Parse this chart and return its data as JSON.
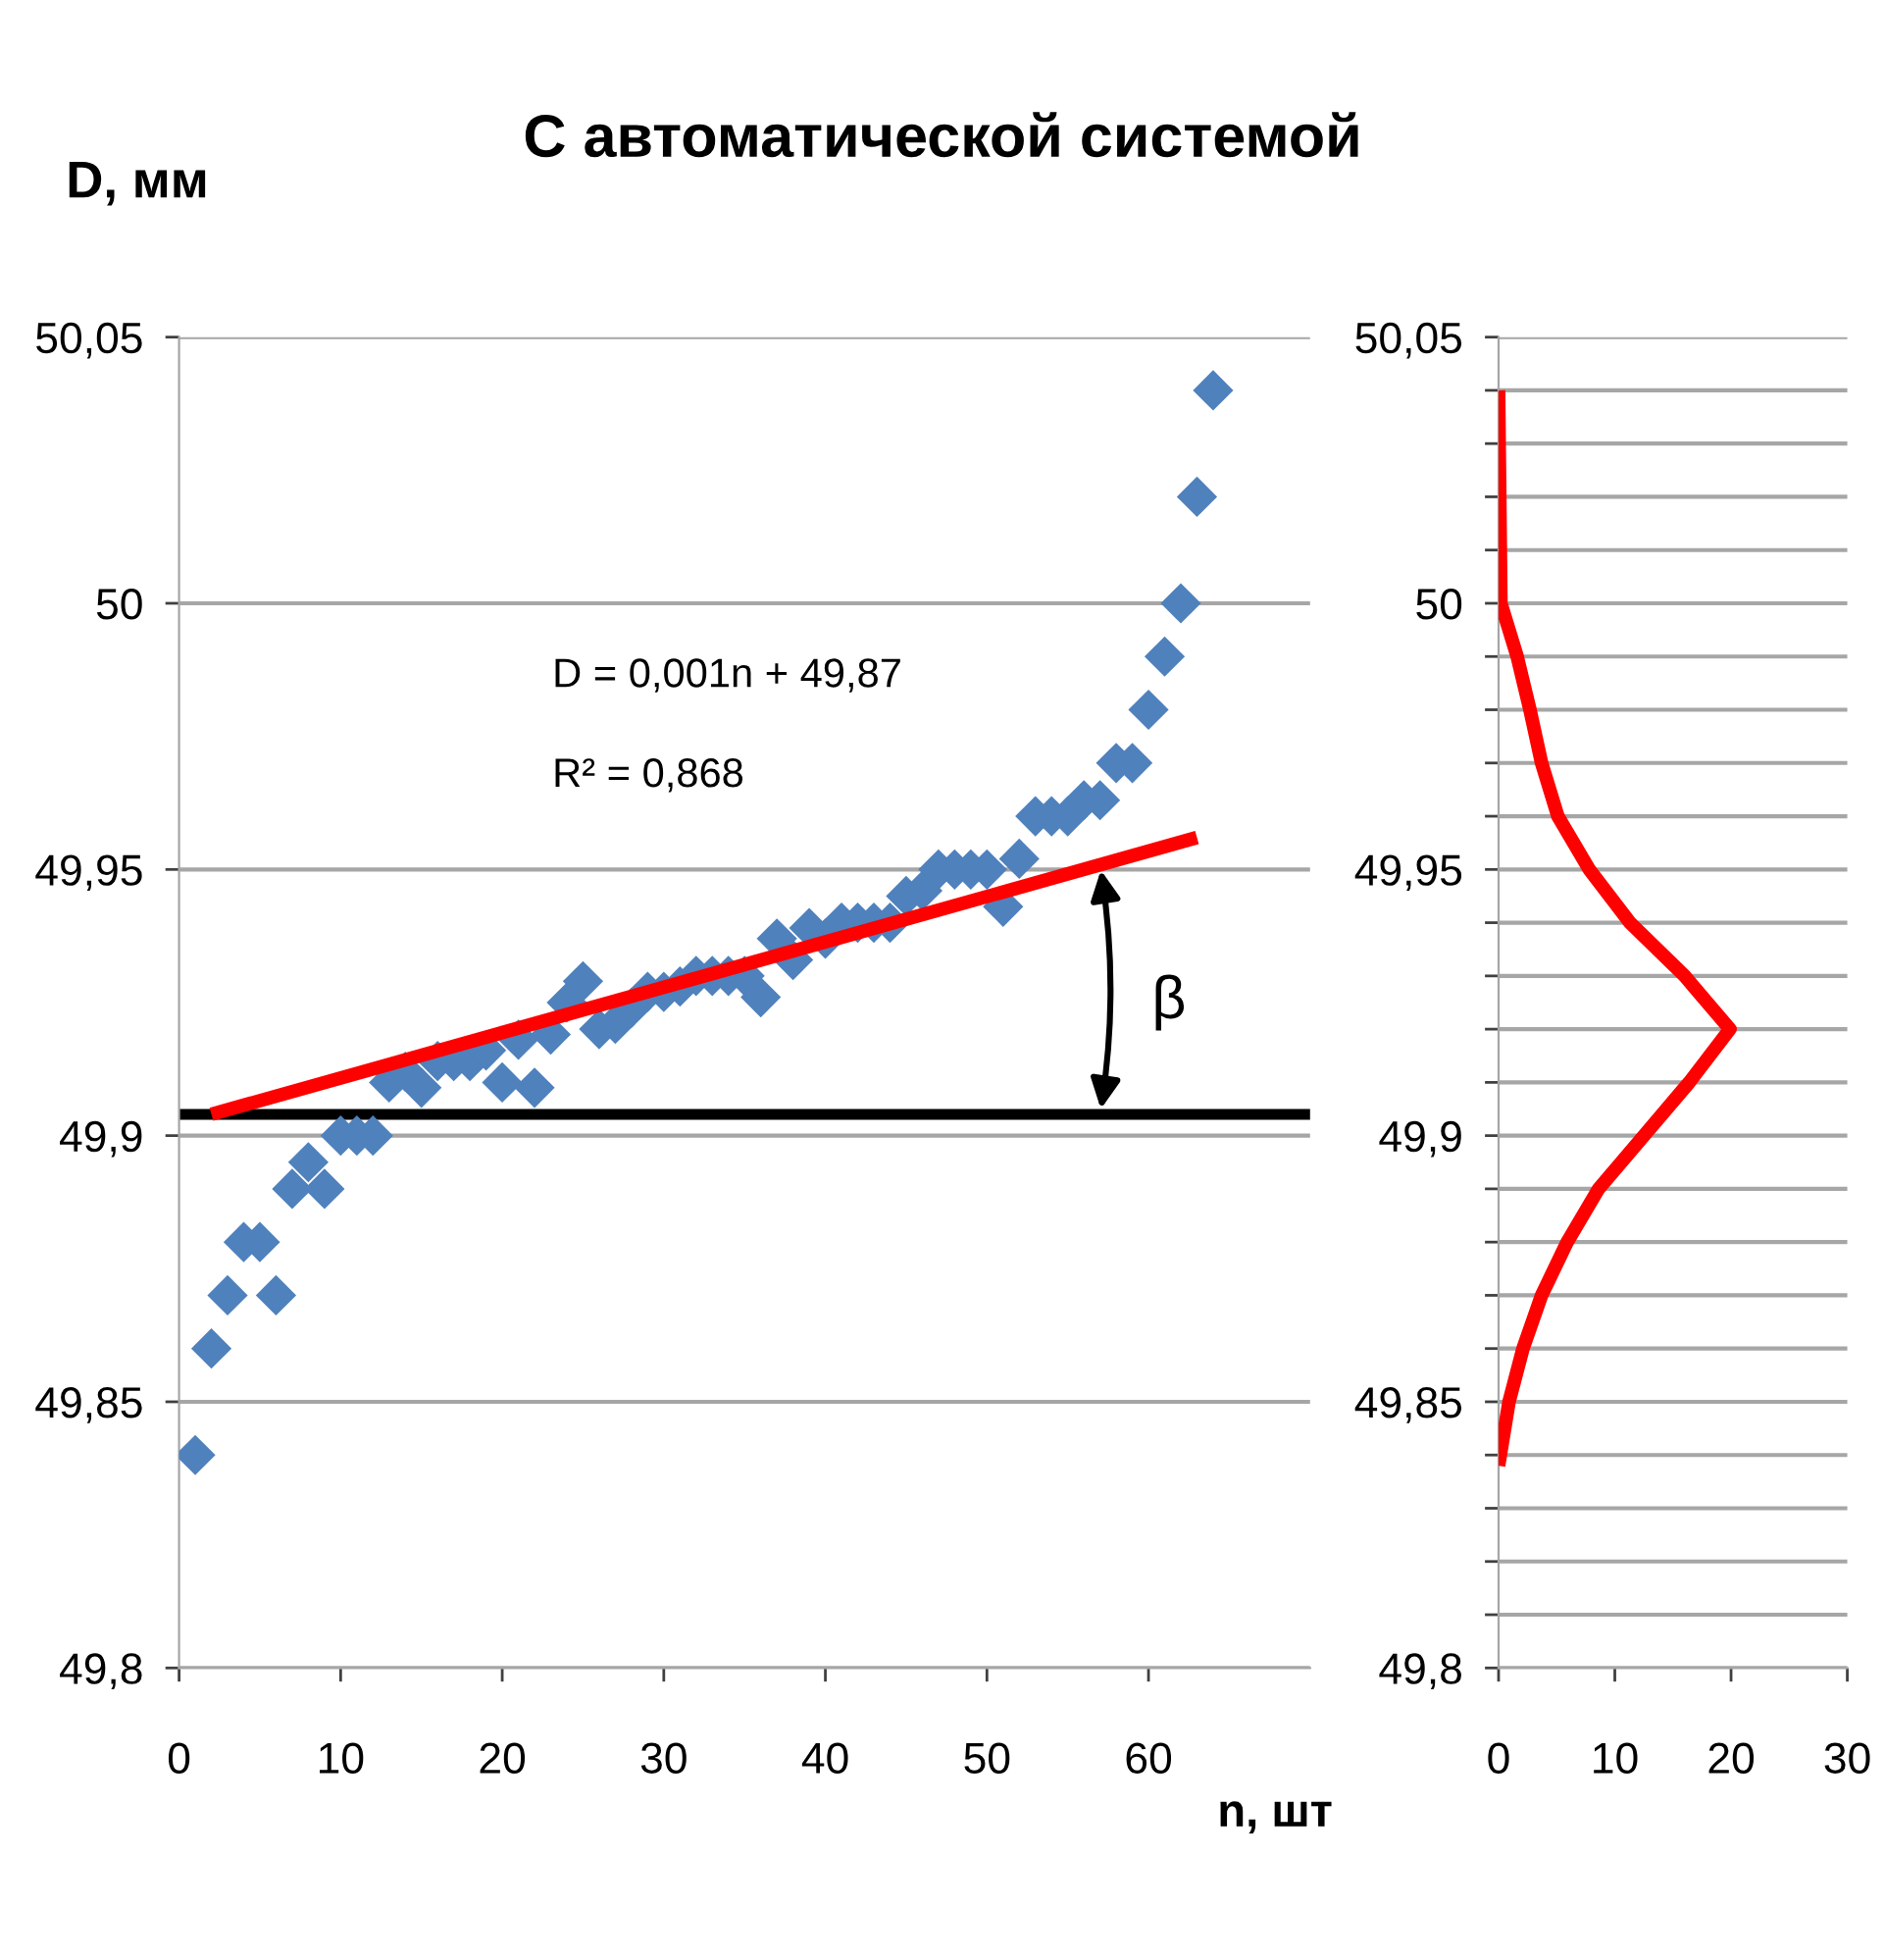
{
  "chart_data": [
    {
      "type": "scatter",
      "title": "С автоматической системой",
      "ylabel": "D, мм",
      "xlabel": "n, шт",
      "xlim": [
        0,
        70
      ],
      "xticks": [
        0,
        10,
        20,
        30,
        40,
        50,
        60
      ],
      "ylim": [
        49.8,
        50.05
      ],
      "yticks": [
        {
          "value": 49.8,
          "label": "49,8"
        },
        {
          "value": 49.85,
          "label": "49,85"
        },
        {
          "value": 49.9,
          "label": "49,9"
        },
        {
          "value": 49.95,
          "label": "49,95"
        },
        {
          "value": 50,
          "label": "50"
        },
        {
          "value": 50.05,
          "label": "50,05"
        }
      ],
      "grid": "y",
      "series": [
        {
          "marker": "diamond",
          "color": "#4f81bd",
          "x": [
            1,
            2,
            3,
            4,
            5,
            6,
            7,
            8,
            9,
            10,
            11,
            12,
            13,
            14,
            15,
            16,
            17,
            18,
            19,
            20,
            21,
            22,
            23,
            24,
            25,
            26,
            27,
            28,
            29,
            30,
            31,
            32,
            33,
            34,
            35,
            36,
            37,
            38,
            39,
            40,
            41,
            42,
            43,
            44,
            45,
            46,
            47,
            48,
            49,
            50,
            51,
            52,
            53,
            54,
            55,
            56,
            57,
            58,
            59,
            60,
            61,
            62,
            63,
            64
          ],
          "values": [
            49.84,
            49.86,
            49.87,
            49.88,
            49.88,
            49.87,
            49.89,
            49.895,
            49.89,
            49.9,
            49.9,
            49.9,
            49.91,
            49.912,
            49.909,
            49.914,
            49.914,
            49.914,
            49.916,
            49.91,
            49.918,
            49.909,
            49.919,
            49.925,
            49.929,
            49.92,
            49.921,
            49.924,
            49.927,
            49.927,
            49.928,
            49.93,
            49.93,
            49.93,
            49.93,
            49.926,
            49.937,
            49.933,
            49.939,
            49.937,
            49.94,
            49.94,
            49.94,
            49.94,
            49.945,
            49.946,
            49.95,
            49.95,
            49.95,
            49.95,
            49.943,
            49.952,
            49.96,
            49.96,
            49.96,
            49.963,
            49.963,
            49.97,
            49.97,
            49.98,
            49.99,
            50.0,
            50.02,
            50.04
          ]
        },
        {
          "type": "line",
          "color": "#ff0000",
          "x": [
            2,
            63
          ],
          "values": [
            49.904,
            49.956
          ]
        }
      ],
      "ref_lines": [
        {
          "axis": "y",
          "value": 49.904,
          "color": "#000000"
        }
      ],
      "annotations": [
        "D = 0,001n + 49,87",
        "R² = 0,868",
        "β"
      ]
    },
    {
      "type": "line",
      "xlim": [
        0,
        30
      ],
      "xticks": [
        0,
        10,
        20,
        30
      ],
      "ylim": [
        49.8,
        50.05
      ],
      "yticks": [
        {
          "value": 49.8,
          "label": "49,8"
        },
        {
          "value": 49.81,
          "label": null
        },
        {
          "value": 49.82,
          "label": null
        },
        {
          "value": 49.83,
          "label": null
        },
        {
          "value": 49.84,
          "label": null
        },
        {
          "value": 49.85,
          "label": "49,85"
        },
        {
          "value": 49.86,
          "label": null
        },
        {
          "value": 49.87,
          "label": null
        },
        {
          "value": 49.88,
          "label": null
        },
        {
          "value": 49.89,
          "label": null
        },
        {
          "value": 49.9,
          "label": "49,9"
        },
        {
          "value": 49.91,
          "label": null
        },
        {
          "value": 49.92,
          "label": null
        },
        {
          "value": 49.93,
          "label": null
        },
        {
          "value": 49.94,
          "label": null
        },
        {
          "value": 49.95,
          "label": "49,95"
        },
        {
          "value": 49.96,
          "label": null
        },
        {
          "value": 49.97,
          "label": null
        },
        {
          "value": 49.98,
          "label": null
        },
        {
          "value": 49.99,
          "label": null
        },
        {
          "value": 50,
          "label": "50"
        },
        {
          "value": 50.01,
          "label": null
        },
        {
          "value": 50.02,
          "label": null
        },
        {
          "value": 50.03,
          "label": null
        },
        {
          "value": 50.04,
          "label": null
        },
        {
          "value": 50.05,
          "label": "50,05"
        }
      ],
      "grid": "y",
      "series": [
        {
          "color": "#ff0000",
          "x": [
            0,
            0.9,
            2.1,
            3.7,
            5.9,
            8.6,
            12.5,
            16.4,
            19.9,
            16,
            11.3,
            7.8,
            5.1,
            3.7,
            2.7,
            1.6,
            0.2,
            0
          ],
          "values": [
            49.838,
            49.85,
            49.86,
            49.87,
            49.88,
            49.89,
            49.9,
            49.91,
            49.92,
            49.93,
            49.94,
            49.95,
            49.96,
            49.97,
            49.98,
            49.99,
            50.0,
            50.04
          ]
        }
      ]
    }
  ]
}
